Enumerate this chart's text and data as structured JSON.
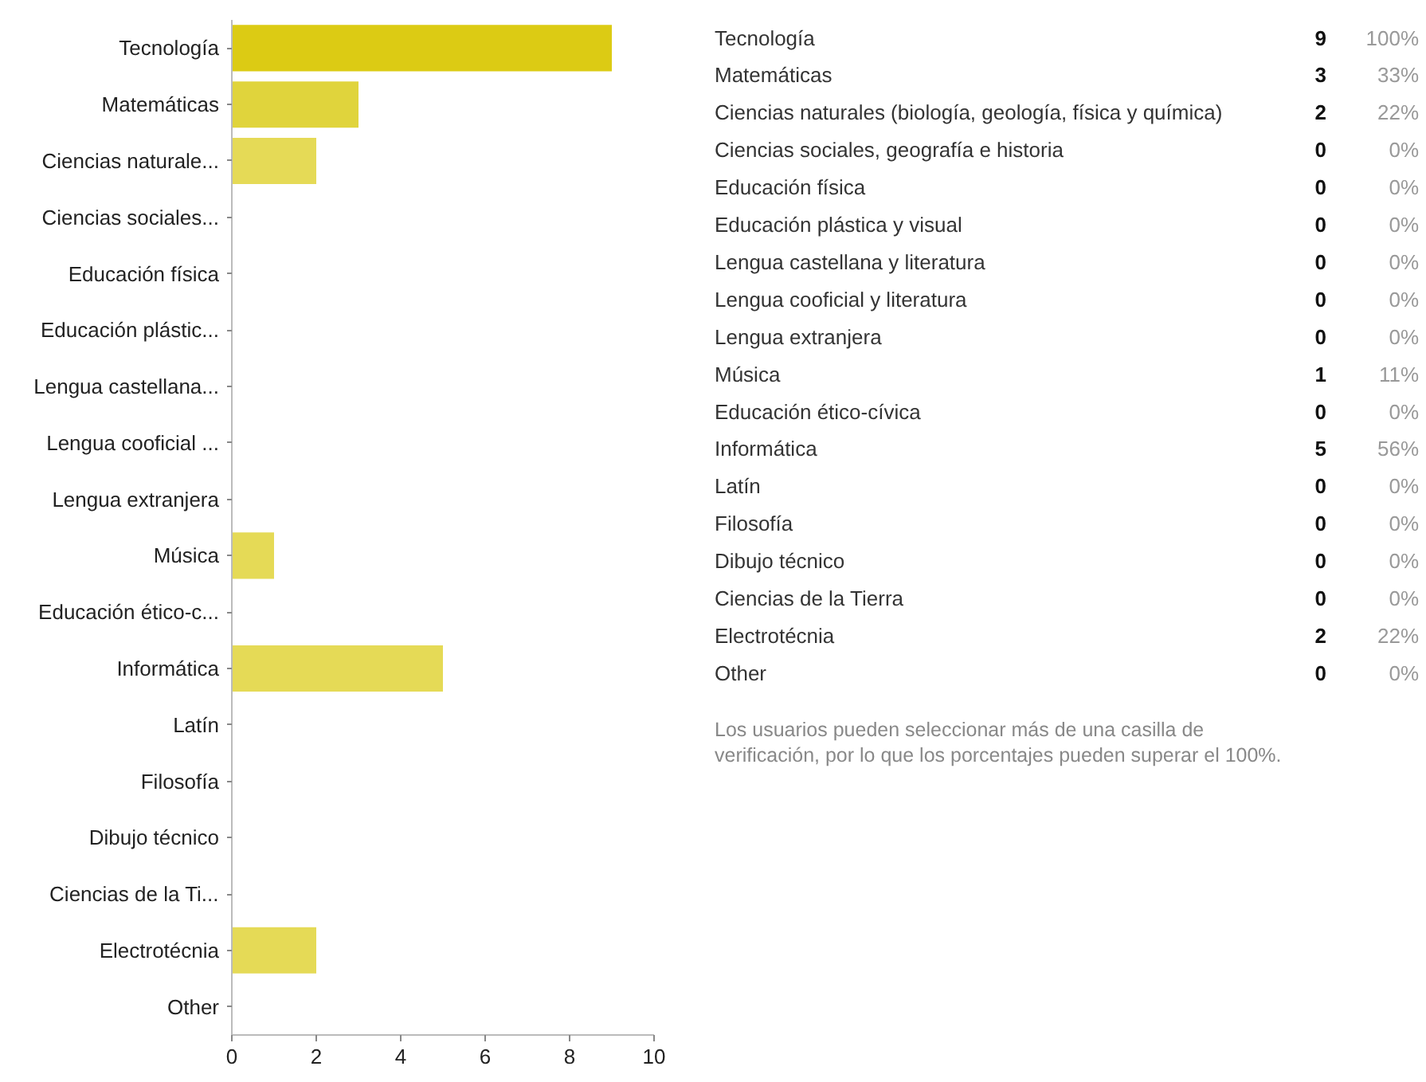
{
  "chart_data": [
    {
      "type": "bar",
      "orientation": "horizontal",
      "categories": [
        "Tecnología",
        "Matemáticas",
        "Ciencias naturale...",
        "Ciencias sociales...",
        "Educación física",
        "Educación plástic...",
        "Lengua castellana...",
        "Lengua cooficial ...",
        "Lengua extranjera",
        "Música",
        "Educación ético-c...",
        "Informática",
        "Latín",
        "Filosofía",
        "Dibujo técnico",
        "Ciencias de la Ti...",
        "Electrotécnia",
        "Other"
      ],
      "values": [
        9,
        3,
        2,
        0,
        0,
        0,
        0,
        0,
        0,
        1,
        0,
        5,
        0,
        0,
        0,
        0,
        2,
        0
      ],
      "colors": [
        "#dccb14",
        "#e0d43c",
        "#e5da56",
        "#e5da56",
        "#e5da56",
        "#e5da56",
        "#e5da56",
        "#e5da56",
        "#e5da56",
        "#e5da56",
        "#e5da56",
        "#e5da56",
        "#e5da56",
        "#e5da56",
        "#e5da56",
        "#e5da56",
        "#e5da56",
        "#e5da56"
      ],
      "xlim": [
        0,
        10
      ],
      "xticks": [
        0,
        2,
        4,
        6,
        8,
        10
      ],
      "grid": false
    },
    {
      "type": "other",
      "data_labels": true,
      "categories": [
        "Tecnología",
        "Matemáticas",
        "Ciencias naturales (biología, geología, física y química)",
        "Ciencias sociales, geografía e historia",
        "Educación física",
        "Educación plástica y visual",
        "Lengua castellana y literatura",
        "Lengua cooficial y literatura",
        "Lengua extranjera",
        "Música",
        "Educación ético-cívica",
        "Informática",
        "Latín",
        "Filosofía",
        "Dibujo técnico",
        "Ciencias de la Tierra",
        "Electrotécnia",
        "Other"
      ],
      "series": [
        {
          "values": [
            9,
            3,
            2,
            0,
            0,
            0,
            0,
            0,
            0,
            1,
            0,
            5,
            0,
            0,
            0,
            0,
            2,
            0
          ]
        },
        {
          "values": [
            100,
            33,
            22,
            0,
            0,
            0,
            0,
            0,
            0,
            11,
            0,
            56,
            0,
            0,
            0,
            0,
            22,
            0
          ],
          "value_labels": [
            "100%",
            "33%",
            "22%",
            "0%",
            "0%",
            "0%",
            "0%",
            "0%",
            "0%",
            "11%",
            "0%",
            "56%",
            "0%",
            "0%",
            "0%",
            "0%",
            "22%",
            "0%"
          ]
        }
      ],
      "annotations": [
        "Los usuarios pueden seleccionar más de una casilla de verificación, por lo que los porcentajes pueden superar el 100%."
      ]
    }
  ]
}
